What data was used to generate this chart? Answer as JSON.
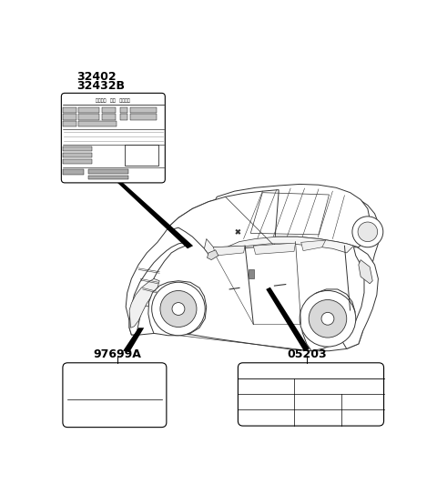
{
  "bg_color": "#ffffff",
  "line_color": "#333333",
  "label_32402": "32402",
  "label_32432B": "32432B",
  "label_97699A": "97699A",
  "label_05203": "05203",
  "font_size_part": 9,
  "car_lw": 0.7
}
